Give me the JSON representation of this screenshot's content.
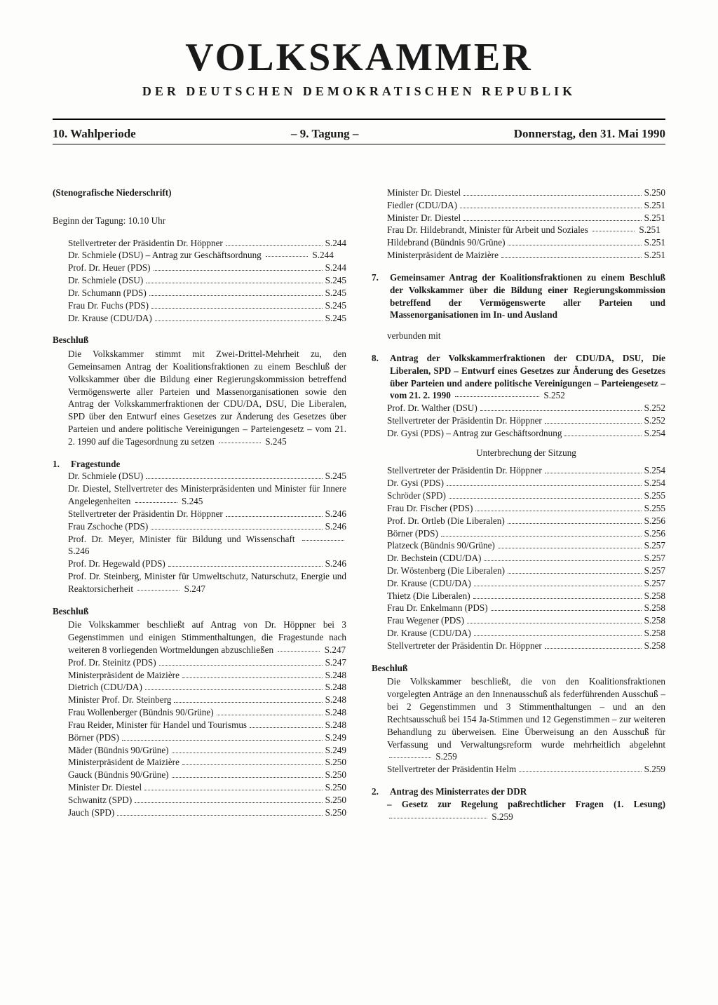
{
  "masthead": {
    "title": "VOLKSKAMMER",
    "subtitle": "DER DEUTSCHEN DEMOKRATISCHEN REPUBLIK"
  },
  "session": {
    "period": "10. Wahlperiode",
    "meeting": "– 9. Tagung –",
    "date": "Donnerstag, den 31. Mai 1990"
  },
  "note": "(Stenografische Niederschrift)",
  "beginn": "Beginn der Tagung: 10.10 Uhr",
  "col1": {
    "opening": [
      {
        "label": "Stellvertreter der Präsidentin Dr. Höppner",
        "page": "S.244"
      },
      {
        "label": "Dr. Schmiele (DSU) – Antrag zur Geschäftsordnung",
        "page": "S.244",
        "wrap": true
      },
      {
        "label": "Prof. Dr. Heuer (PDS)",
        "page": "S.244"
      },
      {
        "label": "Dr. Schmiele (DSU)",
        "page": "S.245"
      },
      {
        "label": "Dr. Schumann (PDS)",
        "page": "S.245"
      },
      {
        "label": "Frau Dr. Fuchs (PDS)",
        "page": "S.245"
      },
      {
        "label": "Dr. Krause (CDU/DA)",
        "page": "S.245"
      }
    ],
    "beschluss1_head": "Beschluß",
    "beschluss1_text": "Die Volkskammer stimmt mit Zwei-Drittel-Mehrheit zu, den Gemeinsamen Antrag der Koalitionsfraktionen zu einem Beschluß der Volkskammer über die Bildung einer Regierungskommission betreffend Vermögenswerte aller Parteien und Massenorganisationen sowie den Antrag der Volkskammerfraktionen der CDU/DA, DSU, Die Liberalen, SPD über den Entwurf eines Gesetzes zur Änderung des Gesetzes über Parteien und andere politische Vereinigungen – Parteiengesetz – vom 21. 2. 1990 auf die Tagesordnung zu setzen",
    "beschluss1_page": "S.245",
    "item1_num": "1.",
    "item1_title": "Fragestunde",
    "item1_entries": [
      {
        "label": "Dr. Schmiele (DSU)",
        "page": "S.245"
      },
      {
        "label": "Dr. Diestel, Stellvertreter des Ministerpräsidenten und Minister für Innere Angelegenheiten",
        "page": "S.245",
        "wrap": true
      },
      {
        "label": "Stellvertreter der Präsidentin Dr. Höppner",
        "page": "S.246"
      },
      {
        "label": "Frau Zschoche (PDS)",
        "page": "S.246"
      },
      {
        "label": "Prof. Dr. Meyer, Minister für Bildung und Wissenschaft",
        "page": "S.246",
        "wrap": true
      },
      {
        "label": "Prof. Dr. Hegewald (PDS)",
        "page": "S.246"
      },
      {
        "label": "Prof. Dr. Steinberg, Minister für Umweltschutz, Naturschutz, Energie und Reaktorsicherheit",
        "page": "S.247",
        "wrap": true
      }
    ],
    "beschluss2_head": "Beschluß",
    "beschluss2_text": "Die Volkskammer beschließt auf Antrag von Dr. Höppner bei 3 Gegenstimmen und einigen Stimmenthaltungen, die Fragestunde nach weiteren 8 vorliegenden Wortmeldungen abzuschließen",
    "beschluss2_page": "S.247",
    "beschluss2_entries": [
      {
        "label": "Prof. Dr. Steinitz (PDS)",
        "page": "S.247"
      },
      {
        "label": "Ministerpräsident de Maizière",
        "page": "S.248"
      },
      {
        "label": "Dietrich (CDU/DA)",
        "page": "S.248"
      },
      {
        "label": "Minister Prof. Dr. Steinberg",
        "page": "S.248"
      },
      {
        "label": "Frau Wollenberger (Bündnis 90/Grüne)",
        "page": "S.248"
      },
      {
        "label": "Frau Reider, Minister für Handel und Tourismus",
        "page": "S.248"
      },
      {
        "label": "Börner (PDS)",
        "page": "S.249"
      },
      {
        "label": "Mäder (Bündnis 90/Grüne)",
        "page": "S.249"
      },
      {
        "label": "Ministerpräsident de Maizière",
        "page": "S.250"
      },
      {
        "label": "Gauck (Bündnis 90/Grüne)",
        "page": "S.250"
      },
      {
        "label": "Minister Dr. Diestel",
        "page": "S.250"
      },
      {
        "label": "Schwanitz (SPD)",
        "page": "S.250"
      },
      {
        "label": "Jauch (SPD)",
        "page": "S.250"
      }
    ]
  },
  "col2": {
    "cont_entries": [
      {
        "label": "Minister Dr. Diestel",
        "page": "S.250"
      },
      {
        "label": "Fiedler (CDU/DA)",
        "page": "S.251"
      },
      {
        "label": "Minister Dr. Diestel",
        "page": "S.251"
      },
      {
        "label": "Frau Dr. Hildebrandt, Minister für Arbeit und Soziales",
        "page": "S.251",
        "wrap": true
      },
      {
        "label": "Hildebrand (Bündnis 90/Grüne)",
        "page": "S.251"
      },
      {
        "label": "Ministerpräsident de Maizière",
        "page": "S.251"
      }
    ],
    "item7_num": "7.",
    "item7_text": "Gemeinsamer Antrag der Koalitionsfraktionen zu einem Beschluß der Volkskammer über die Bildung einer Regierungskommission betreffend der Vermögenswerte aller Parteien und Massenorganisationen im In- und Ausland",
    "verbunden": "verbunden mit",
    "item8_num": "8.",
    "item8_text": "Antrag der Volkskammerfraktionen der CDU/DA, DSU, Die Liberalen, SPD – Entwurf eines Gesetzes zur Änderung des Gesetzes über Parteien und andere politische Vereinigungen – Parteiengesetz – vom 21. 2. 1990",
    "item8_page": "S.252",
    "item8_entries": [
      {
        "label": "Prof. Dr. Walther (DSU)",
        "page": "S.252"
      },
      {
        "label": "Stellvertreter der Präsidentin Dr. Höppner",
        "page": "S.252"
      },
      {
        "label": "Dr. Gysi (PDS) – Antrag zur Geschäftsordnung",
        "page": "S.254"
      }
    ],
    "interrupt": "Unterbrechung der Sitzung",
    "post_entries": [
      {
        "label": "Stellvertreter der Präsidentin Dr. Höppner",
        "page": "S.254"
      },
      {
        "label": "Dr. Gysi (PDS)",
        "page": "S.254"
      },
      {
        "label": "Schröder (SPD)",
        "page": "S.255"
      },
      {
        "label": "Frau Dr. Fischer (PDS)",
        "page": "S.255"
      },
      {
        "label": "Prof. Dr. Ortleb (Die Liberalen)",
        "page": "S.256"
      },
      {
        "label": "Börner (PDS)",
        "page": "S.256"
      },
      {
        "label": "Platzeck (Bündnis 90/Grüne)",
        "page": "S.257"
      },
      {
        "label": "Dr. Bechstein (CDU/DA)",
        "page": "S.257"
      },
      {
        "label": "Dr. Wöstenberg (Die Liberalen)",
        "page": "S.257"
      },
      {
        "label": "Dr. Krause (CDU/DA)",
        "page": "S.257"
      },
      {
        "label": "Thietz (Die Liberalen)",
        "page": "S.258"
      },
      {
        "label": "Frau Dr. Enkelmann (PDS)",
        "page": "S.258"
      },
      {
        "label": "Frau Wegener (PDS)",
        "page": "S.258"
      },
      {
        "label": "Dr. Krause (CDU/DA)",
        "page": "S.258"
      },
      {
        "label": "Stellvertreter der Präsidentin Dr. Höppner",
        "page": "S.258"
      }
    ],
    "beschluss3_head": "Beschluß",
    "beschluss3_text": "Die Volkskammer beschließt, die von den Koalitionsfraktionen vorgelegten Anträge an den Innenausschuß als federführenden Ausschuß – bei 2 Gegenstimmen und 3 Stimmenthaltungen – und an den Rechtsausschuß bei 154 Ja-Stimmen und 12 Gegenstimmen – zur weiteren Behandlung zu überweisen. Eine Überweisung an den Ausschuß für Verfassung und Verwaltungsreform wurde mehrheitlich abgelehnt",
    "beschluss3_page": "S.259",
    "beschluss3_entries": [
      {
        "label": "Stellvertreter der Präsidentin Helm",
        "page": "S.259"
      }
    ],
    "item2_num": "2.",
    "item2_title": "Antrag des Ministerrates der DDR",
    "item2_sub": "– Gesetz zur Regelung paßrechtlicher Fragen (1. Lesung)",
    "item2_page": "S.259"
  }
}
